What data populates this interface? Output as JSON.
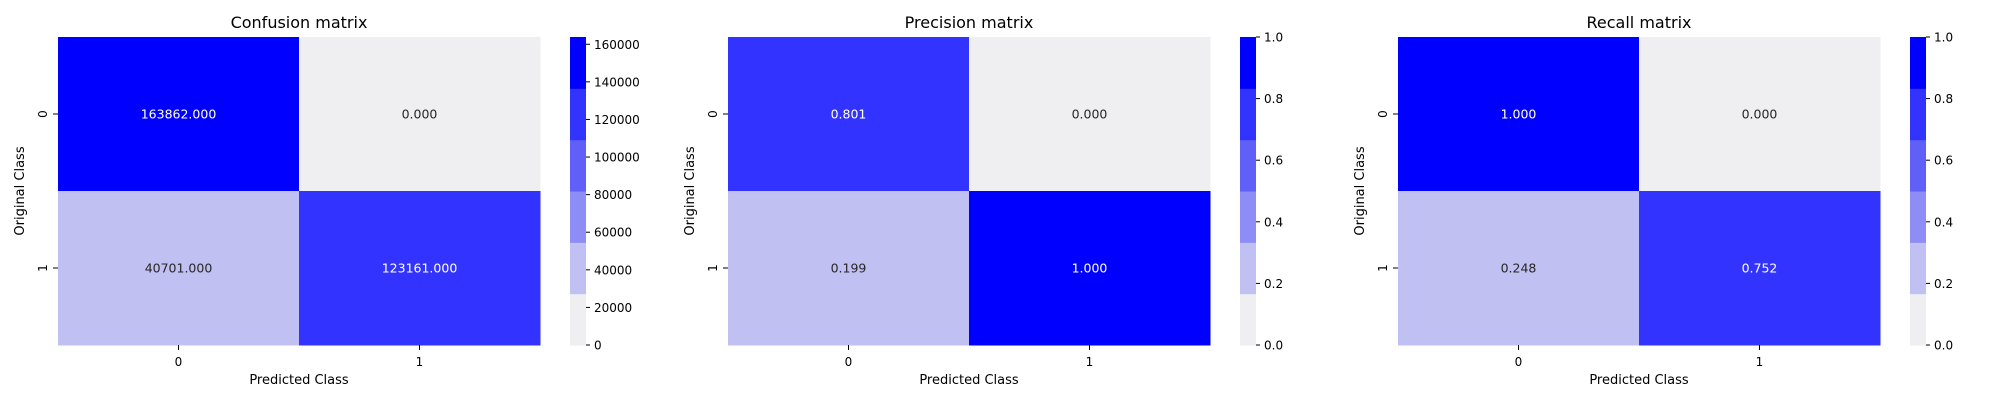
{
  "chart_data": [
    {
      "type": "heatmap",
      "title": "Confusion matrix",
      "xlabel": "Predicted Class",
      "ylabel": "Original Class",
      "x_categories": [
        "0",
        "1"
      ],
      "y_categories": [
        "0",
        "1"
      ],
      "values": [
        [
          163862,
          0
        ],
        [
          40701,
          123161
        ]
      ],
      "cell_labels": [
        [
          "163862.000",
          "0.000"
        ],
        [
          "40701.000",
          "123161.000"
        ]
      ],
      "colorbar": {
        "min": 0,
        "max": 163862,
        "ticks": [
          0,
          20000,
          40000,
          60000,
          80000,
          100000,
          120000,
          140000,
          160000
        ],
        "tick_labels": [
          "0",
          "20000",
          "40000",
          "60000",
          "80000",
          "100000",
          "120000",
          "140000",
          "160000"
        ]
      },
      "palette": [
        "#efeff2",
        "#c0c0f2",
        "#8d8df5",
        "#6060f8",
        "#3333ff",
        "#0000ff"
      ],
      "grid": false
    },
    {
      "type": "heatmap",
      "title": "Precision matrix",
      "xlabel": "Predicted Class",
      "ylabel": "Original Class",
      "x_categories": [
        "0",
        "1"
      ],
      "y_categories": [
        "0",
        "1"
      ],
      "values": [
        [
          0.801,
          0.0
        ],
        [
          0.199,
          1.0
        ]
      ],
      "cell_labels": [
        [
          "0.801",
          "0.000"
        ],
        [
          "0.199",
          "1.000"
        ]
      ],
      "colorbar": {
        "min": 0,
        "max": 1,
        "ticks": [
          0,
          0.2,
          0.4,
          0.6,
          0.8,
          1.0
        ],
        "tick_labels": [
          "0.0",
          "0.2",
          "0.4",
          "0.6",
          "0.8",
          "1.0"
        ]
      },
      "palette": [
        "#efeff2",
        "#c0c0f2",
        "#8d8df5",
        "#6060f8",
        "#3333ff",
        "#0000ff"
      ],
      "grid": false
    },
    {
      "type": "heatmap",
      "title": "Recall matrix",
      "xlabel": "Predicted Class",
      "ylabel": "Original Class",
      "x_categories": [
        "0",
        "1"
      ],
      "y_categories": [
        "0",
        "1"
      ],
      "values": [
        [
          1.0,
          0.0
        ],
        [
          0.248,
          0.752
        ]
      ],
      "cell_labels": [
        [
          "1.000",
          "0.000"
        ],
        [
          "0.248",
          "0.752"
        ]
      ],
      "colorbar": {
        "min": 0,
        "max": 1,
        "ticks": [
          0,
          0.2,
          0.4,
          0.6,
          0.8,
          1.0
        ],
        "tick_labels": [
          "0.0",
          "0.2",
          "0.4",
          "0.6",
          "0.8",
          "1.0"
        ]
      },
      "palette": [
        "#efeff2",
        "#c0c0f2",
        "#8d8df5",
        "#6060f8",
        "#3333ff",
        "#0000ff"
      ],
      "grid": false
    }
  ]
}
